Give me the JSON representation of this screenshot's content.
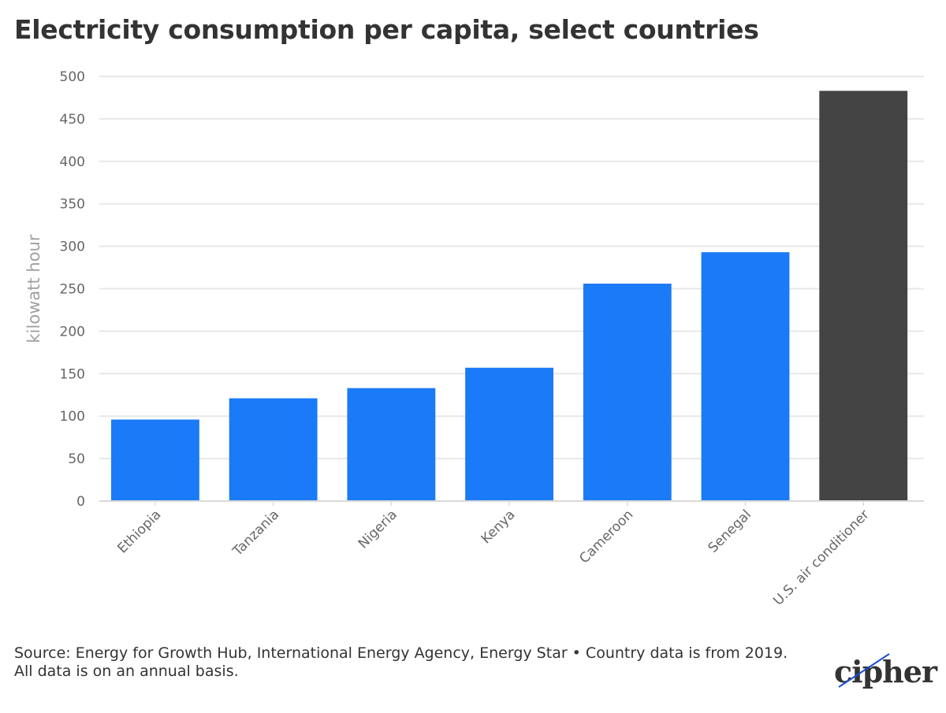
{
  "chart_data": {
    "type": "bar",
    "title": "Electricity consumption per capita, select countries",
    "categories": [
      "Ethiopia",
      "Tanzania",
      "Nigeria",
      "Kenya",
      "Cameroon",
      "Senegal",
      "U.S. air conditioner"
    ],
    "values": [
      96,
      121,
      133,
      157,
      256,
      293,
      483
    ],
    "xlabel": "",
    "ylabel": "kilowatt hour",
    "ylim": [
      0,
      500
    ],
    "yticks": [
      0,
      50,
      100,
      150,
      200,
      250,
      300,
      350,
      400,
      450,
      500
    ],
    "colors": {
      "country": "#1a7af8",
      "highlight": "#444444"
    },
    "highlight_category": "U.S. air conditioner",
    "grid": true
  },
  "footer": {
    "source": "Source: Energy for Growth Hub, International Energy Agency, Energy Star • Country data is from 2019.",
    "note": "All data is on an annual basis."
  },
  "logo": {
    "text": "cipher"
  }
}
